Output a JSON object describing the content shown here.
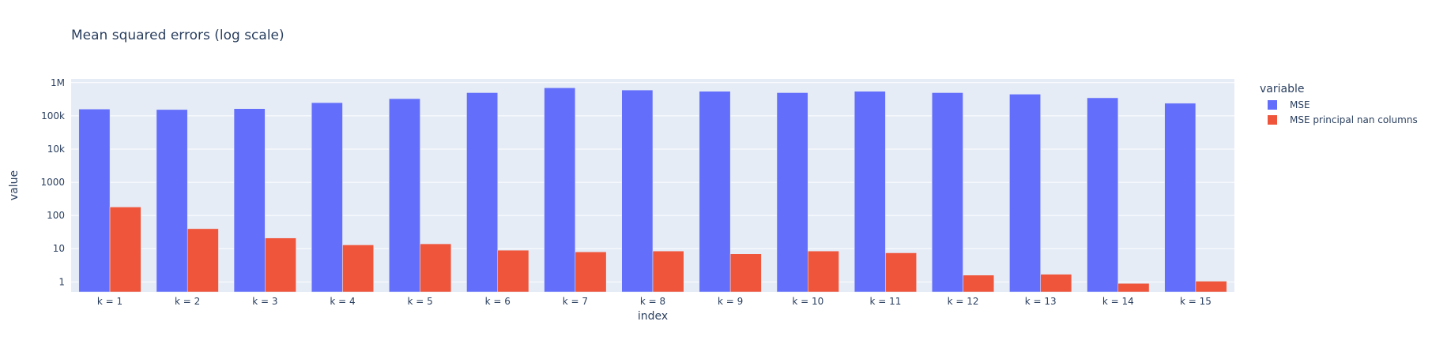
{
  "chart_data": {
    "type": "bar",
    "barmode": "group",
    "title": "Mean squared errors (log scale)",
    "xlabel": "index",
    "ylabel": "value",
    "yscale": "log",
    "ylim": [
      0.5,
      1300000
    ],
    "yticks": [
      {
        "value": 1,
        "label": "1"
      },
      {
        "value": 10,
        "label": "10"
      },
      {
        "value": 100,
        "label": "100"
      },
      {
        "value": 1000,
        "label": "1000"
      },
      {
        "value": 10000,
        "label": "10k"
      },
      {
        "value": 100000,
        "label": "100k"
      },
      {
        "value": 1000000,
        "label": "1M"
      }
    ],
    "grid": true,
    "legend": {
      "title": "variable",
      "position": "right"
    },
    "categories": [
      "k = 1",
      "k = 2",
      "k = 3",
      "k = 4",
      "k = 5",
      "k = 6",
      "k = 7",
      "k = 8",
      "k = 9",
      "k = 10",
      "k = 11",
      "k = 12",
      "k = 13",
      "k = 14",
      "k = 15"
    ],
    "series": [
      {
        "name": "MSE",
        "color": "#636efa",
        "values": [
          160000,
          155000,
          165000,
          250000,
          330000,
          500000,
          700000,
          600000,
          550000,
          500000,
          550000,
          500000,
          450000,
          350000,
          240000
        ]
      },
      {
        "name": "MSE principal nan columns",
        "color": "#ef553b",
        "values": [
          180,
          40,
          21,
          13,
          14,
          9,
          8,
          8.5,
          7,
          8.5,
          7.5,
          1.6,
          1.7,
          0.9,
          1.05
        ]
      }
    ]
  }
}
